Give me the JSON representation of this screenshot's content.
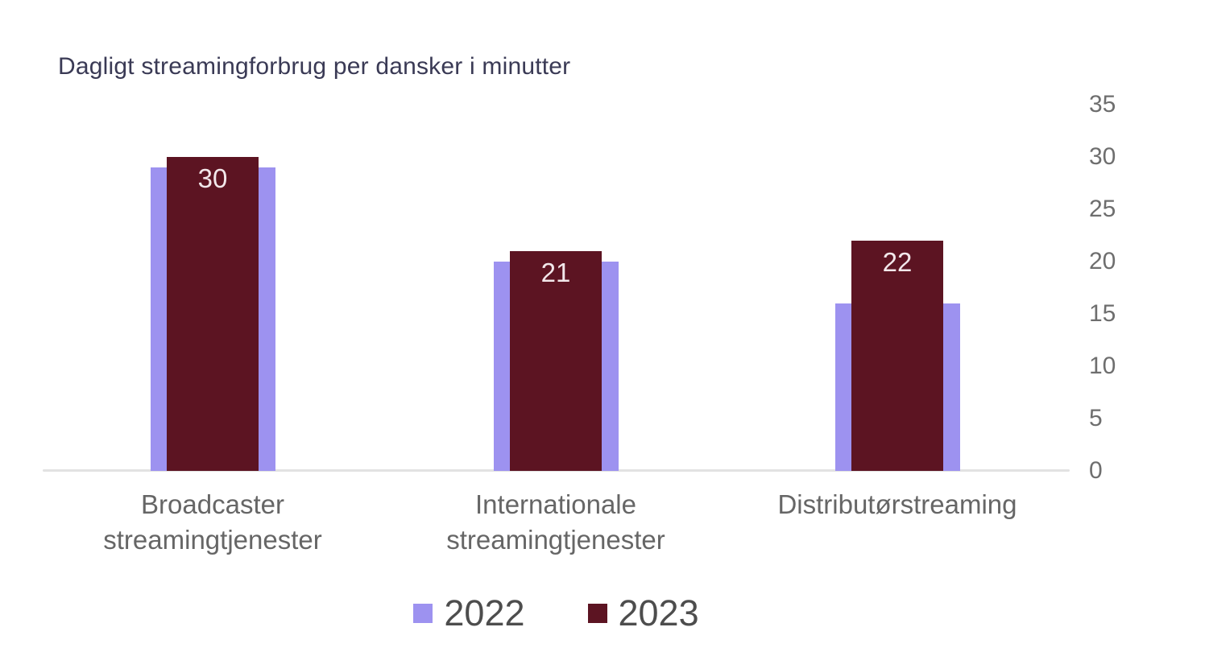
{
  "chart_data": {
    "type": "bar",
    "title": "Dagligt streamingforbrug per dansker i minutter",
    "categories": [
      "Broadcaster streamingtjenester",
      "Internationale streamingtjenester",
      "Distributørstreaming"
    ],
    "series": [
      {
        "name": "2022",
        "color": "#9d92f0",
        "values": [
          29,
          20,
          16
        ],
        "data_labels": null
      },
      {
        "name": "2023",
        "color": "#5c1422",
        "values": [
          30,
          21,
          22
        ],
        "data_labels": [
          "30",
          "21",
          "22"
        ]
      }
    ],
    "xlabel": "",
    "ylabel": "",
    "ylim": [
      0,
      35
    ],
    "yticks": [
      0,
      5,
      10,
      15,
      20,
      25,
      30,
      35
    ],
    "y_axis_side": "right",
    "grid": false,
    "bar_style": "overlapped",
    "legend_position": "bottom"
  },
  "legend": {
    "items": [
      {
        "label": "2022",
        "color": "#9d92f0"
      },
      {
        "label": "2023",
        "color": "#5c1422"
      }
    ]
  },
  "colors": {
    "background": "#ffffff",
    "title_text": "#3a3a55",
    "tick_text": "#6e6e6e",
    "category_text": "#666666",
    "legend_text": "#4d4d4d",
    "axis_line": "#e2e2e2",
    "bar_label_text": "#f2e7ea",
    "series_2022": "#9d92f0",
    "series_2023": "#5c1422"
  }
}
